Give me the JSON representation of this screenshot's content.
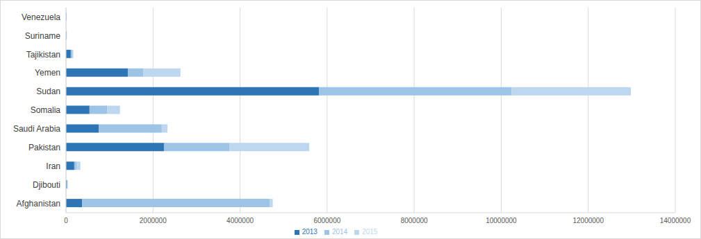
{
  "chart_data": {
    "type": "bar",
    "orientation": "horizontal",
    "stacked": true,
    "grid": true,
    "legend": "bottom",
    "categories": [
      "Afghanistan",
      "Djibouti",
      "Iran",
      "Pakistan",
      "Saudi Arabia",
      "Somalia",
      "Sudan",
      "Yemen",
      "Tajikistan",
      "Suriname",
      "Venezuela"
    ],
    "series": [
      {
        "name": "2013",
        "color": "#2e75b6",
        "values": [
          370000,
          20000,
          190000,
          2250000,
          750000,
          540000,
          5810000,
          1420000,
          110000,
          10000,
          8000
        ]
      },
      {
        "name": "2014",
        "color": "#9dc3e6",
        "values": [
          4310000,
          15000,
          60000,
          1510000,
          1450000,
          410000,
          4430000,
          360000,
          40000,
          5000,
          5000
        ]
      },
      {
        "name": "2015",
        "color": "#bdd7ee",
        "values": [
          70000,
          10000,
          80000,
          1830000,
          130000,
          290000,
          2740000,
          850000,
          20000,
          5000,
          3000
        ]
      }
    ],
    "xlim": [
      0,
      14000000
    ],
    "xticks": [
      0,
      2000000,
      4000000,
      6000000,
      8000000,
      10000000,
      12000000,
      14000000
    ]
  }
}
